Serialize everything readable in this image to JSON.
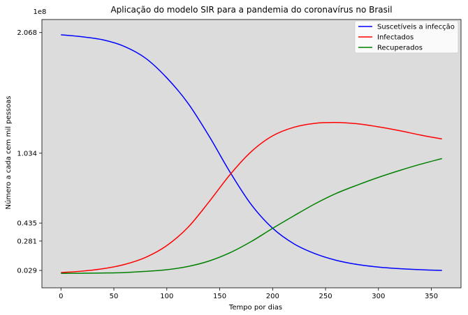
{
  "chart_data": {
    "type": "line",
    "title": "Aplicação do modelo SIR para a pandemia do coronavírus no Brasil",
    "xlabel": "Tempo por dias",
    "ylabel": "Número a cada cem mil pessoas",
    "y_offset_label": "1e8",
    "xlim": [
      -18,
      378
    ],
    "ylim": [
      -12000000,
      218000000
    ],
    "x_ticks": [
      0,
      50,
      100,
      150,
      200,
      250,
      300,
      350
    ],
    "x_tick_labels": [
      "0",
      "50",
      "100",
      "150",
      "200",
      "250",
      "300",
      "350"
    ],
    "y_ticks": [
      2900000,
      28100000,
      43500000,
      103400000,
      206800000
    ],
    "y_tick_labels": [
      "0.029",
      "0.281",
      "0.435",
      "1.034",
      "2.068"
    ],
    "background": "#dcdcdc",
    "grid": false,
    "legend_position": "top-right",
    "x": [
      0,
      20,
      40,
      60,
      80,
      100,
      120,
      140,
      160,
      180,
      200,
      220,
      240,
      260,
      280,
      300,
      320,
      340,
      360
    ],
    "series": [
      {
        "name": "Suscetíveis a infecção",
        "color": "#0000ff",
        "values": [
          204900000,
          203200000,
          200500000,
          194900000,
          184800000,
          168000000,
          146300000,
          118000000,
          86800000,
          59100000,
          39100000,
          25800000,
          17300000,
          11600000,
          8000000,
          5800000,
          4400000,
          3500000,
          2900000
        ]
      },
      {
        "name": "Infectados",
        "color": "#ff0000",
        "values": [
          1100000,
          2300000,
          4400000,
          8000000,
          14100000,
          24200000,
          39800000,
          61800000,
          85300000,
          104900000,
          118300000,
          125600000,
          129000000,
          129700000,
          128600000,
          126000000,
          122700000,
          118900000,
          115600000
        ]
      },
      {
        "name": "Recuperados",
        "color": "#008000",
        "values": [
          400000,
          500000,
          700000,
          1100000,
          2100000,
          3500000,
          6300000,
          11000000,
          18200000,
          27800000,
          39000000,
          49700000,
          60000000,
          68900000,
          76100000,
          82700000,
          88600000,
          94000000,
          98800000
        ]
      }
    ]
  }
}
